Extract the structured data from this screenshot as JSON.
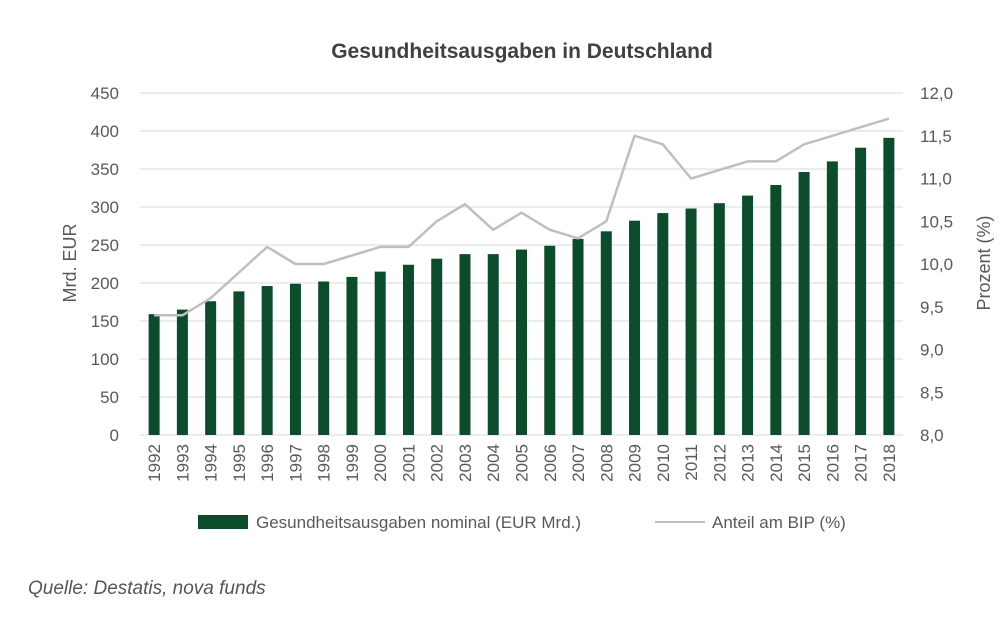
{
  "source": "Quelle: Destatis, nova funds",
  "chart_data": {
    "type": "bar",
    "title": "Gesundheitsausgaben in Deutschland",
    "categories": [
      "1992",
      "1993",
      "1994",
      "1995",
      "1996",
      "1997",
      "1998",
      "1999",
      "2000",
      "2001",
      "2002",
      "2003",
      "2004",
      "2005",
      "2006",
      "2007",
      "2008",
      "2009",
      "2010",
      "2011",
      "2012",
      "2013",
      "2014",
      "2015",
      "2016",
      "2017",
      "2018"
    ],
    "series": [
      {
        "name": "Gesundheitsausgaben nominal (EUR Mrd.)",
        "type": "bar",
        "axis": "left",
        "color": "#0b4d2b",
        "values": [
          159,
          165,
          176,
          189,
          196,
          199,
          202,
          208,
          215,
          224,
          232,
          238,
          238,
          244,
          249,
          258,
          268,
          282,
          292,
          298,
          305,
          315,
          329,
          346,
          360,
          378,
          391
        ]
      },
      {
        "name": "Anteil am BIP (%)",
        "type": "line",
        "axis": "right",
        "color": "#bfbfbf",
        "values": [
          9.4,
          9.4,
          9.6,
          9.9,
          10.2,
          10.0,
          10.0,
          10.1,
          10.2,
          10.2,
          10.5,
          10.7,
          10.4,
          10.6,
          10.4,
          10.3,
          10.5,
          11.5,
          11.4,
          11.0,
          11.1,
          11.2,
          11.2,
          11.4,
          11.5,
          11.6,
          11.7
        ]
      }
    ],
    "ylabel": "Mrd. EUR",
    "y2label": "Prozent (%)",
    "ylim": [
      0,
      450
    ],
    "yticks": [
      "0",
      "50",
      "100",
      "150",
      "200",
      "250",
      "300",
      "350",
      "400",
      "450"
    ],
    "y2lim": [
      8.0,
      12.0
    ],
    "y2ticks": [
      "8,0",
      "8,5",
      "9,0",
      "9,5",
      "10,0",
      "10,5",
      "11,0",
      "11,5",
      "12,0"
    ],
    "grid": true,
    "legend_position": "bottom",
    "gridColor": "#d9d9d9"
  }
}
